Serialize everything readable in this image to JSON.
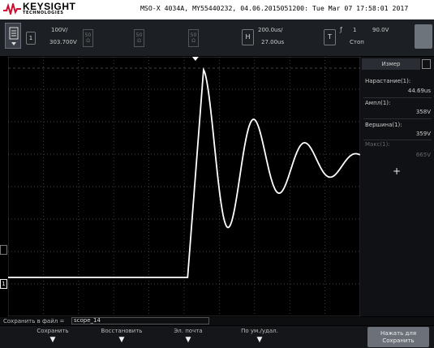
{
  "header": {
    "brand": "KEYSIGHT",
    "tagline": "TECHNOLOGIES",
    "instrument": "MSO-X 4034A, MY55440232, 04.06.2015051200: Tue Mar 07 17:58:01 2017"
  },
  "channels": {
    "ch1_scale": "100V/",
    "ch1_offset": "303.700V",
    "ch1_number": "1",
    "ch2_chip": "50 Ω",
    "ch3_chip": "50 Ω",
    "ch4_chip": "50 Ω"
  },
  "timebase": {
    "badge": "H",
    "scale": "200.0us/",
    "delay": "27.00us"
  },
  "trigger": {
    "badge": "T",
    "source": "1",
    "level": "90.0V",
    "mode": "Стоп"
  },
  "panel": {
    "tab": "Измер",
    "measurements": [
      {
        "label": "Нарастание(1):",
        "value": "44.69us",
        "dim": false
      },
      {
        "label": "Ампл(1):",
        "value": "358V",
        "dim": false
      },
      {
        "label": "Вершина(1):",
        "value": "359V",
        "dim": false
      },
      {
        "label": "Макс(1):",
        "value": "665V",
        "dim": true
      }
    ],
    "add_symbol": "+"
  },
  "status": {
    "label": "Сохранить в файл =",
    "filename": "scope_14"
  },
  "softkeys": [
    {
      "label": "Сохранить",
      "arrow": "▼"
    },
    {
      "label": "Восстановить",
      "arrow": "▼"
    },
    {
      "label": "Эл. почта",
      "arrow": "▼"
    },
    {
      "label": "По ум./удал.",
      "arrow": "▼"
    }
  ],
  "save_button": {
    "line1": "Нажать для",
    "line2": "Сохранить"
  },
  "colors": {
    "trace": "#ffffff",
    "grid": "#5a5a5a",
    "panel": "#101114"
  },
  "waveform": {
    "time_div_us": 200,
    "volts_div": 100,
    "baseline_div": -0.2,
    "step_time_div": 5.1,
    "peak_time_div": 5.55
  }
}
